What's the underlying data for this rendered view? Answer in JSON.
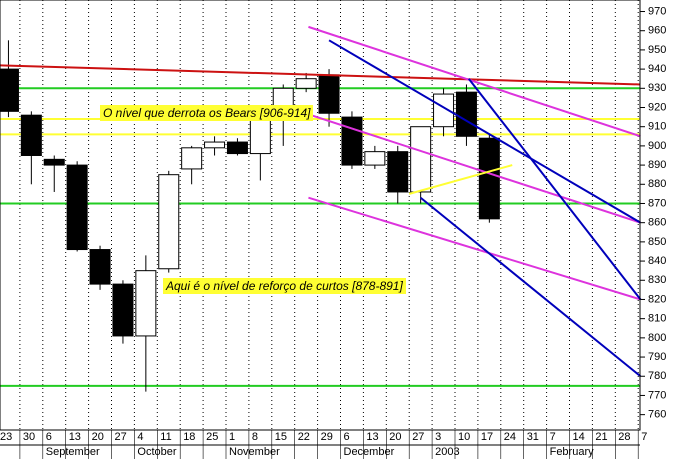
{
  "chart_data": {
    "type": "candlestick",
    "categories": [
      "23",
      "30",
      "6",
      "13",
      "20",
      "27",
      "4",
      "11",
      "18",
      "25",
      "1",
      "8",
      "15",
      "22",
      "29",
      "6",
      "13",
      "20",
      "27",
      "3",
      "10",
      "17",
      "24",
      "31",
      "7",
      "14",
      "21",
      "28",
      "7"
    ],
    "months": [
      null,
      null,
      "September",
      null,
      null,
      null,
      "October",
      null,
      null,
      null,
      "November",
      null,
      null,
      null,
      null,
      "December",
      null,
      null,
      null,
      "2003",
      null,
      null,
      null,
      null,
      "February",
      null,
      null,
      null,
      null
    ],
    "open": [
      940,
      916,
      893,
      890,
      846,
      828,
      801,
      836,
      888,
      899,
      902,
      896,
      915,
      930,
      937,
      915,
      890,
      897,
      876,
      910,
      928,
      904,
      null,
      null,
      null,
      null,
      null,
      null,
      null
    ],
    "high": [
      955,
      918,
      895,
      892,
      848,
      830,
      843,
      887,
      900,
      905,
      904,
      916,
      932,
      938,
      940,
      918,
      900,
      900,
      910,
      930,
      932,
      906,
      null,
      null,
      null,
      null,
      null,
      null,
      null
    ],
    "low": [
      915,
      880,
      876,
      845,
      825,
      797,
      772,
      834,
      880,
      895,
      895,
      882,
      900,
      928,
      910,
      888,
      888,
      870,
      870,
      905,
      900,
      860,
      null,
      null,
      null,
      null,
      null,
      null,
      null
    ],
    "close": [
      918,
      895,
      890,
      846,
      828,
      801,
      835,
      885,
      899,
      902,
      896,
      915,
      930,
      935,
      917,
      890,
      897,
      876,
      910,
      927,
      905,
      862,
      null,
      null,
      null,
      null,
      null,
      null,
      null
    ],
    "up_color": "#ffffff",
    "down_color": "#000000",
    "ylim": [
      752,
      976
    ],
    "yticks": [
      760,
      770,
      780,
      790,
      800,
      810,
      820,
      830,
      840,
      850,
      860,
      870,
      880,
      890,
      900,
      910,
      920,
      930,
      940,
      950,
      960,
      970
    ],
    "grid": true,
    "levels": [
      {
        "color": "#22cc22",
        "value": 930
      },
      {
        "color": "#22cc22",
        "value": 870
      },
      {
        "color": "#22cc22",
        "value": 775
      },
      {
        "color": "#ffff33",
        "value": 914
      },
      {
        "color": "#ffff33",
        "value": 906
      }
    ],
    "trendlines": [
      {
        "color": "#cc1111",
        "x": [
          0,
          28.1
        ],
        "values": [
          942,
          932
        ]
      },
      {
        "color": "#dd33dd",
        "x": [
          13.6,
          28.1
        ],
        "values": [
          962,
          905
        ]
      },
      {
        "color": "#dd33dd",
        "x": [
          13.2,
          28.1
        ],
        "values": [
          918,
          860
        ]
      },
      {
        "color": "#dd33dd",
        "x": [
          13.6,
          28.1
        ],
        "values": [
          873,
          820
        ]
      },
      {
        "color": "#0000bb",
        "x": [
          14.5,
          28.1
        ],
        "values": [
          955,
          860
        ]
      },
      {
        "color": "#0000bb",
        "x": [
          20.6,
          28.1
        ],
        "values": [
          935,
          820
        ]
      },
      {
        "color": "#0000bb",
        "x": [
          18.5,
          28.1
        ],
        "values": [
          873,
          780
        ]
      },
      {
        "color": "#ffff33",
        "x": [
          18,
          22.5
        ],
        "values": [
          875,
          890
        ]
      }
    ],
    "annotations": [
      "O nível que derrota os Bears [906-914]",
      "Aqui é o nível de reforço de curtos [878-891]"
    ]
  }
}
